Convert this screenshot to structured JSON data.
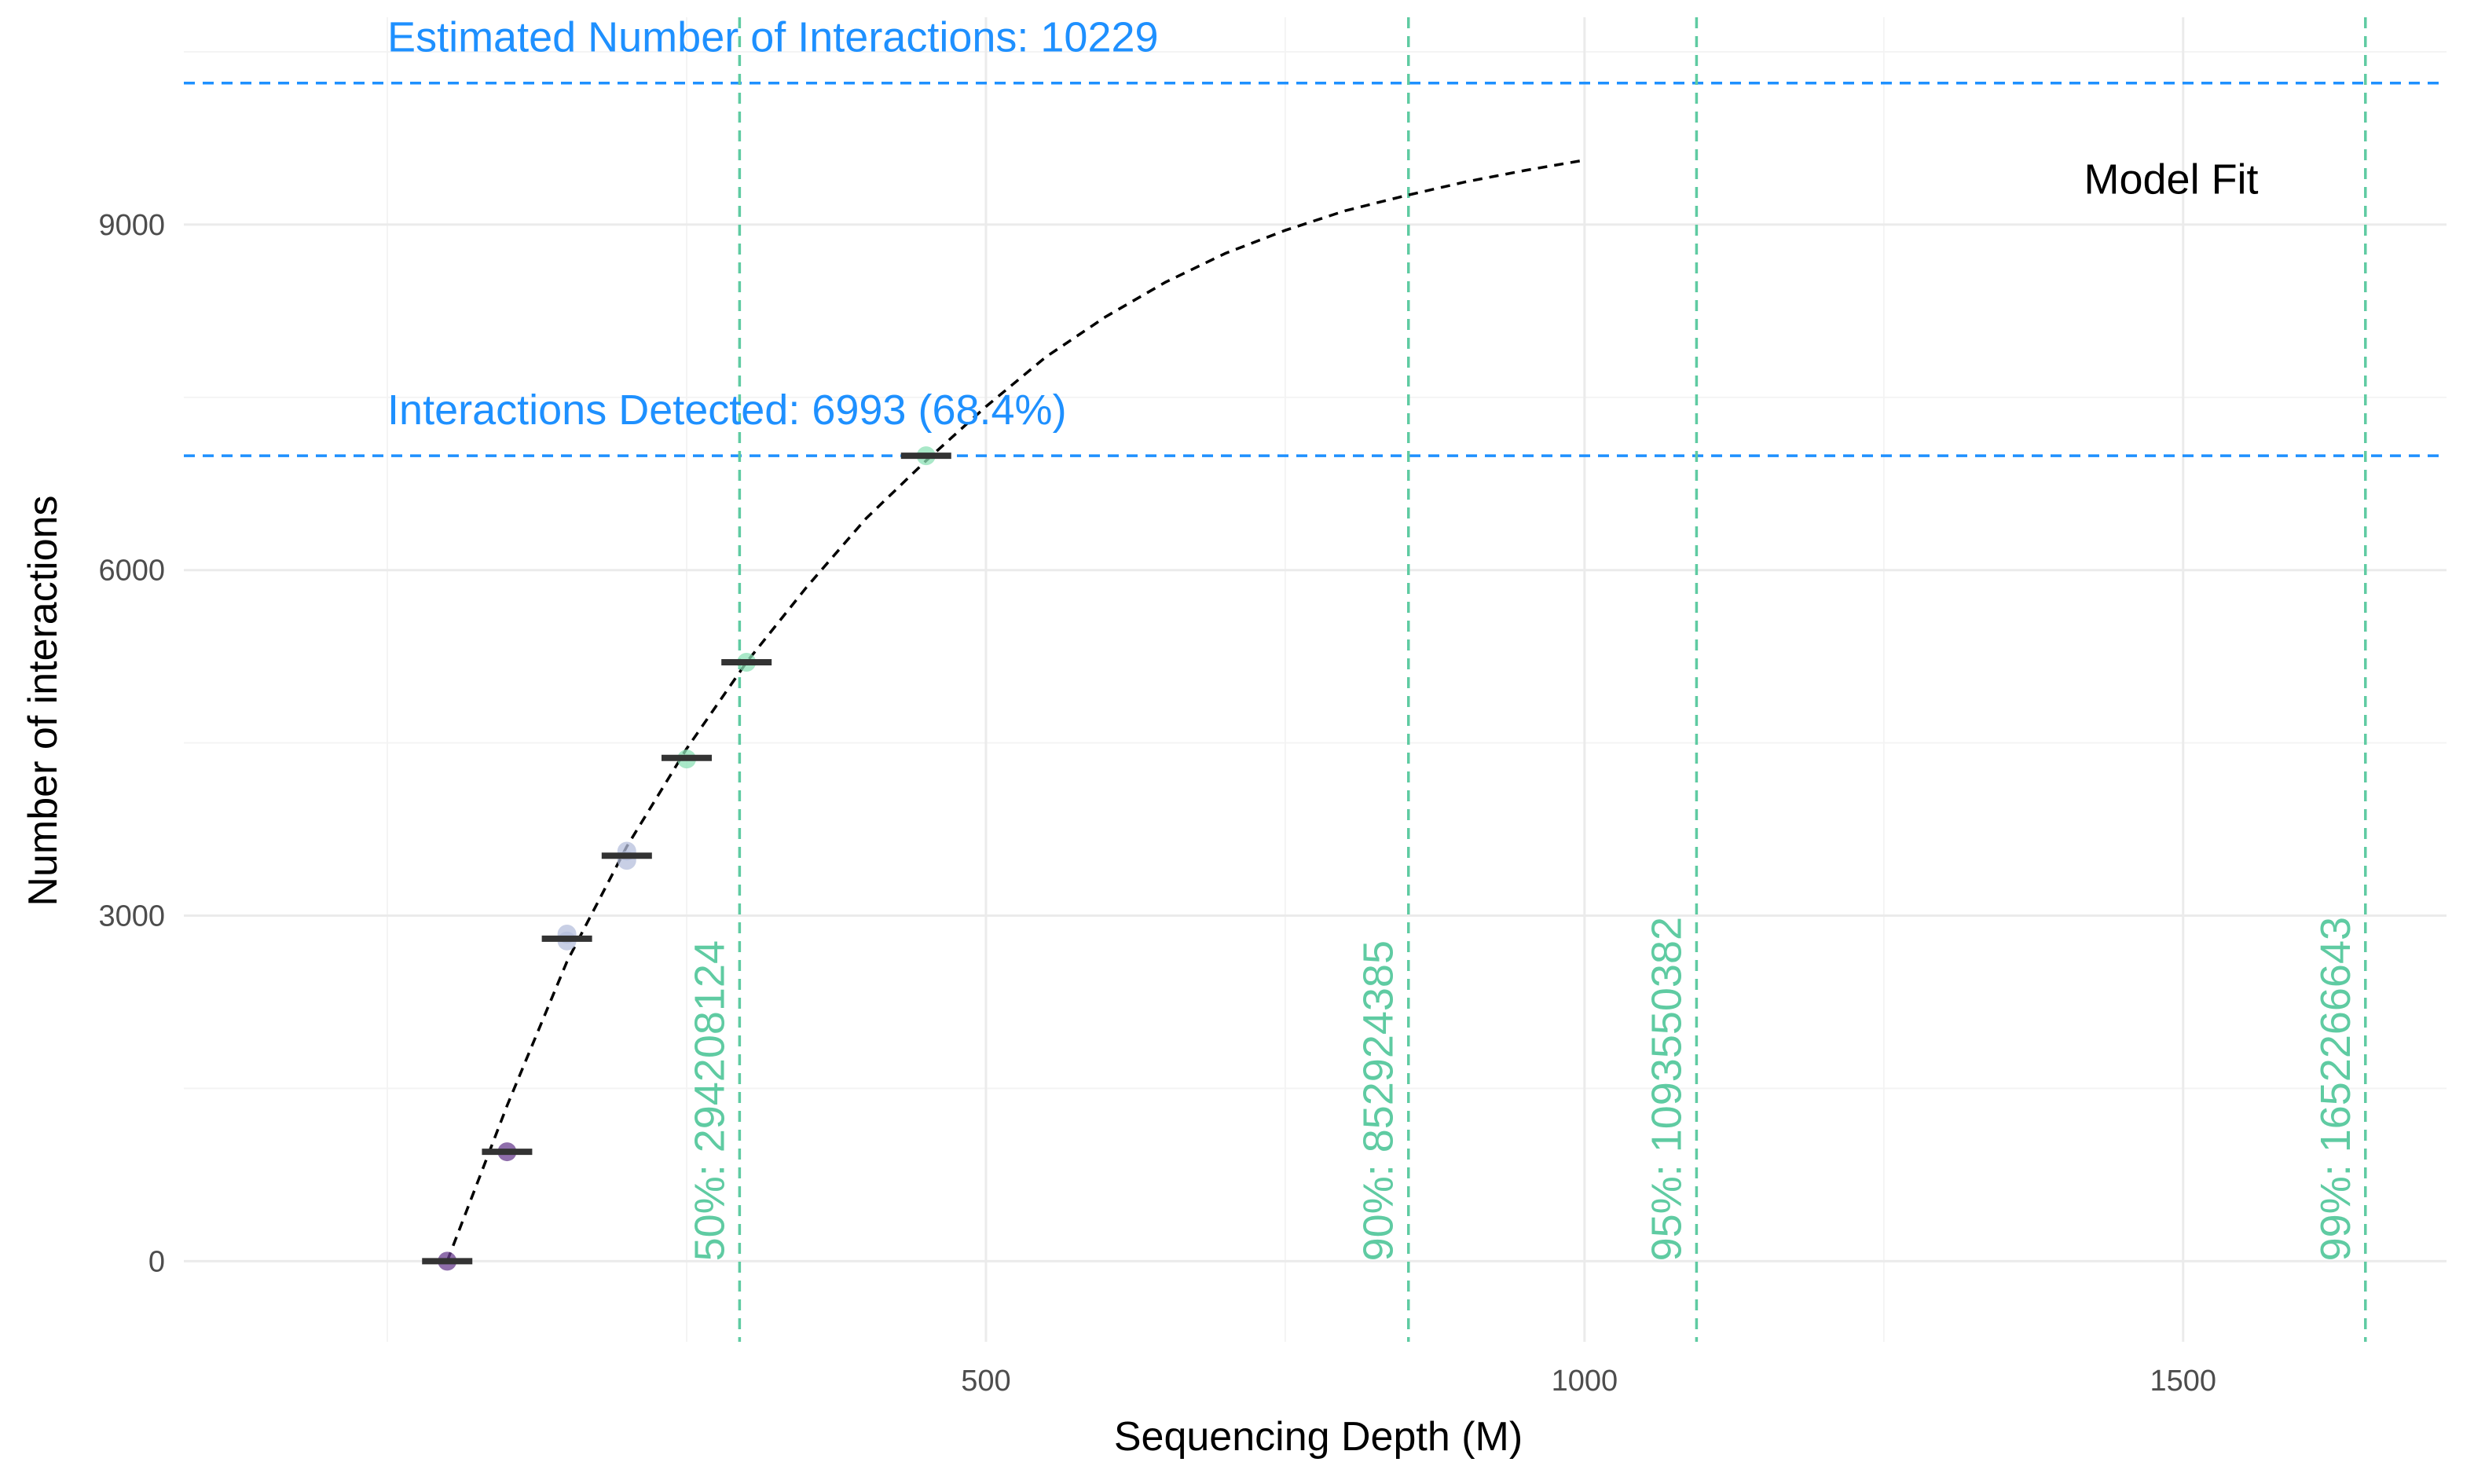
{
  "chart_data": {
    "type": "line",
    "xlabel": "Sequencing Depth (M)",
    "ylabel": "Number of interactions",
    "xlim": [
      -170,
      1720
    ],
    "ylim": [
      -700,
      10800
    ],
    "x_ticks": [
      500,
      1000,
      1500
    ],
    "x_minor": [
      0,
      250,
      750,
      1250
    ],
    "y_ticks": [
      0,
      3000,
      6000,
      9000
    ],
    "y_minor": [
      1500,
      4500,
      7500,
      10500
    ],
    "grid": true,
    "subsample_points": [
      {
        "x": 50,
        "y": 0
      },
      {
        "x": 100,
        "y": 950
      },
      {
        "x": 150,
        "y": 2780
      },
      {
        "x": 150,
        "y": 2840
      },
      {
        "x": 200,
        "y": 3480
      },
      {
        "x": 200,
        "y": 3560
      },
      {
        "x": 250,
        "y": 4360
      },
      {
        "x": 300,
        "y": 5200
      },
      {
        "x": 450,
        "y": 6993
      }
    ],
    "median_bars": [
      {
        "x": 50,
        "y": 0,
        "label": ""
      },
      {
        "x": 100,
        "y": 950,
        "label": ""
      },
      {
        "x": 150,
        "y": 2800,
        "label": ""
      },
      {
        "x": 200,
        "y": 3520,
        "label": ""
      },
      {
        "x": 250,
        "y": 4370,
        "label": ""
      },
      {
        "x": 300,
        "y": 5200,
        "label": ""
      },
      {
        "x": 450,
        "y": 6993,
        "label": ""
      }
    ],
    "model_fit": {
      "label": "Model Fit",
      "x": [
        50,
        100,
        150,
        200,
        250,
        300,
        350,
        400,
        450,
        500,
        550,
        600,
        650,
        700,
        750,
        800,
        850,
        900,
        950,
        1000
      ],
      "y": [
        0,
        1350,
        2600,
        3600,
        4450,
        5200,
        5850,
        6450,
        6950,
        7420,
        7850,
        8200,
        8500,
        8750,
        8950,
        9120,
        9250,
        9370,
        9470,
        9560
      ]
    },
    "horizontal_lines": [
      {
        "y": 10229,
        "label": "Estimated Number of Interactions: 10229"
      },
      {
        "y": 6993,
        "label": "Interactions Detected: 6993 (68.4%)"
      }
    ],
    "vertical_lines": [
      {
        "x": 294.208124,
        "label": "50%: 294208124"
      },
      {
        "x": 852.924385,
        "label": "90%: 852924385"
      },
      {
        "x": 1093.550382,
        "label": "95%: 1093550382"
      },
      {
        "x": 1652.266643,
        "label": "99%: 1652266643"
      }
    ],
    "colors": {
      "hline": "#1e90ff",
      "vline": "#5fcba2",
      "fit": "#000000",
      "bar": "#333333",
      "point_low": "#6a3d8f",
      "point_high": "#8ce0b6"
    }
  }
}
